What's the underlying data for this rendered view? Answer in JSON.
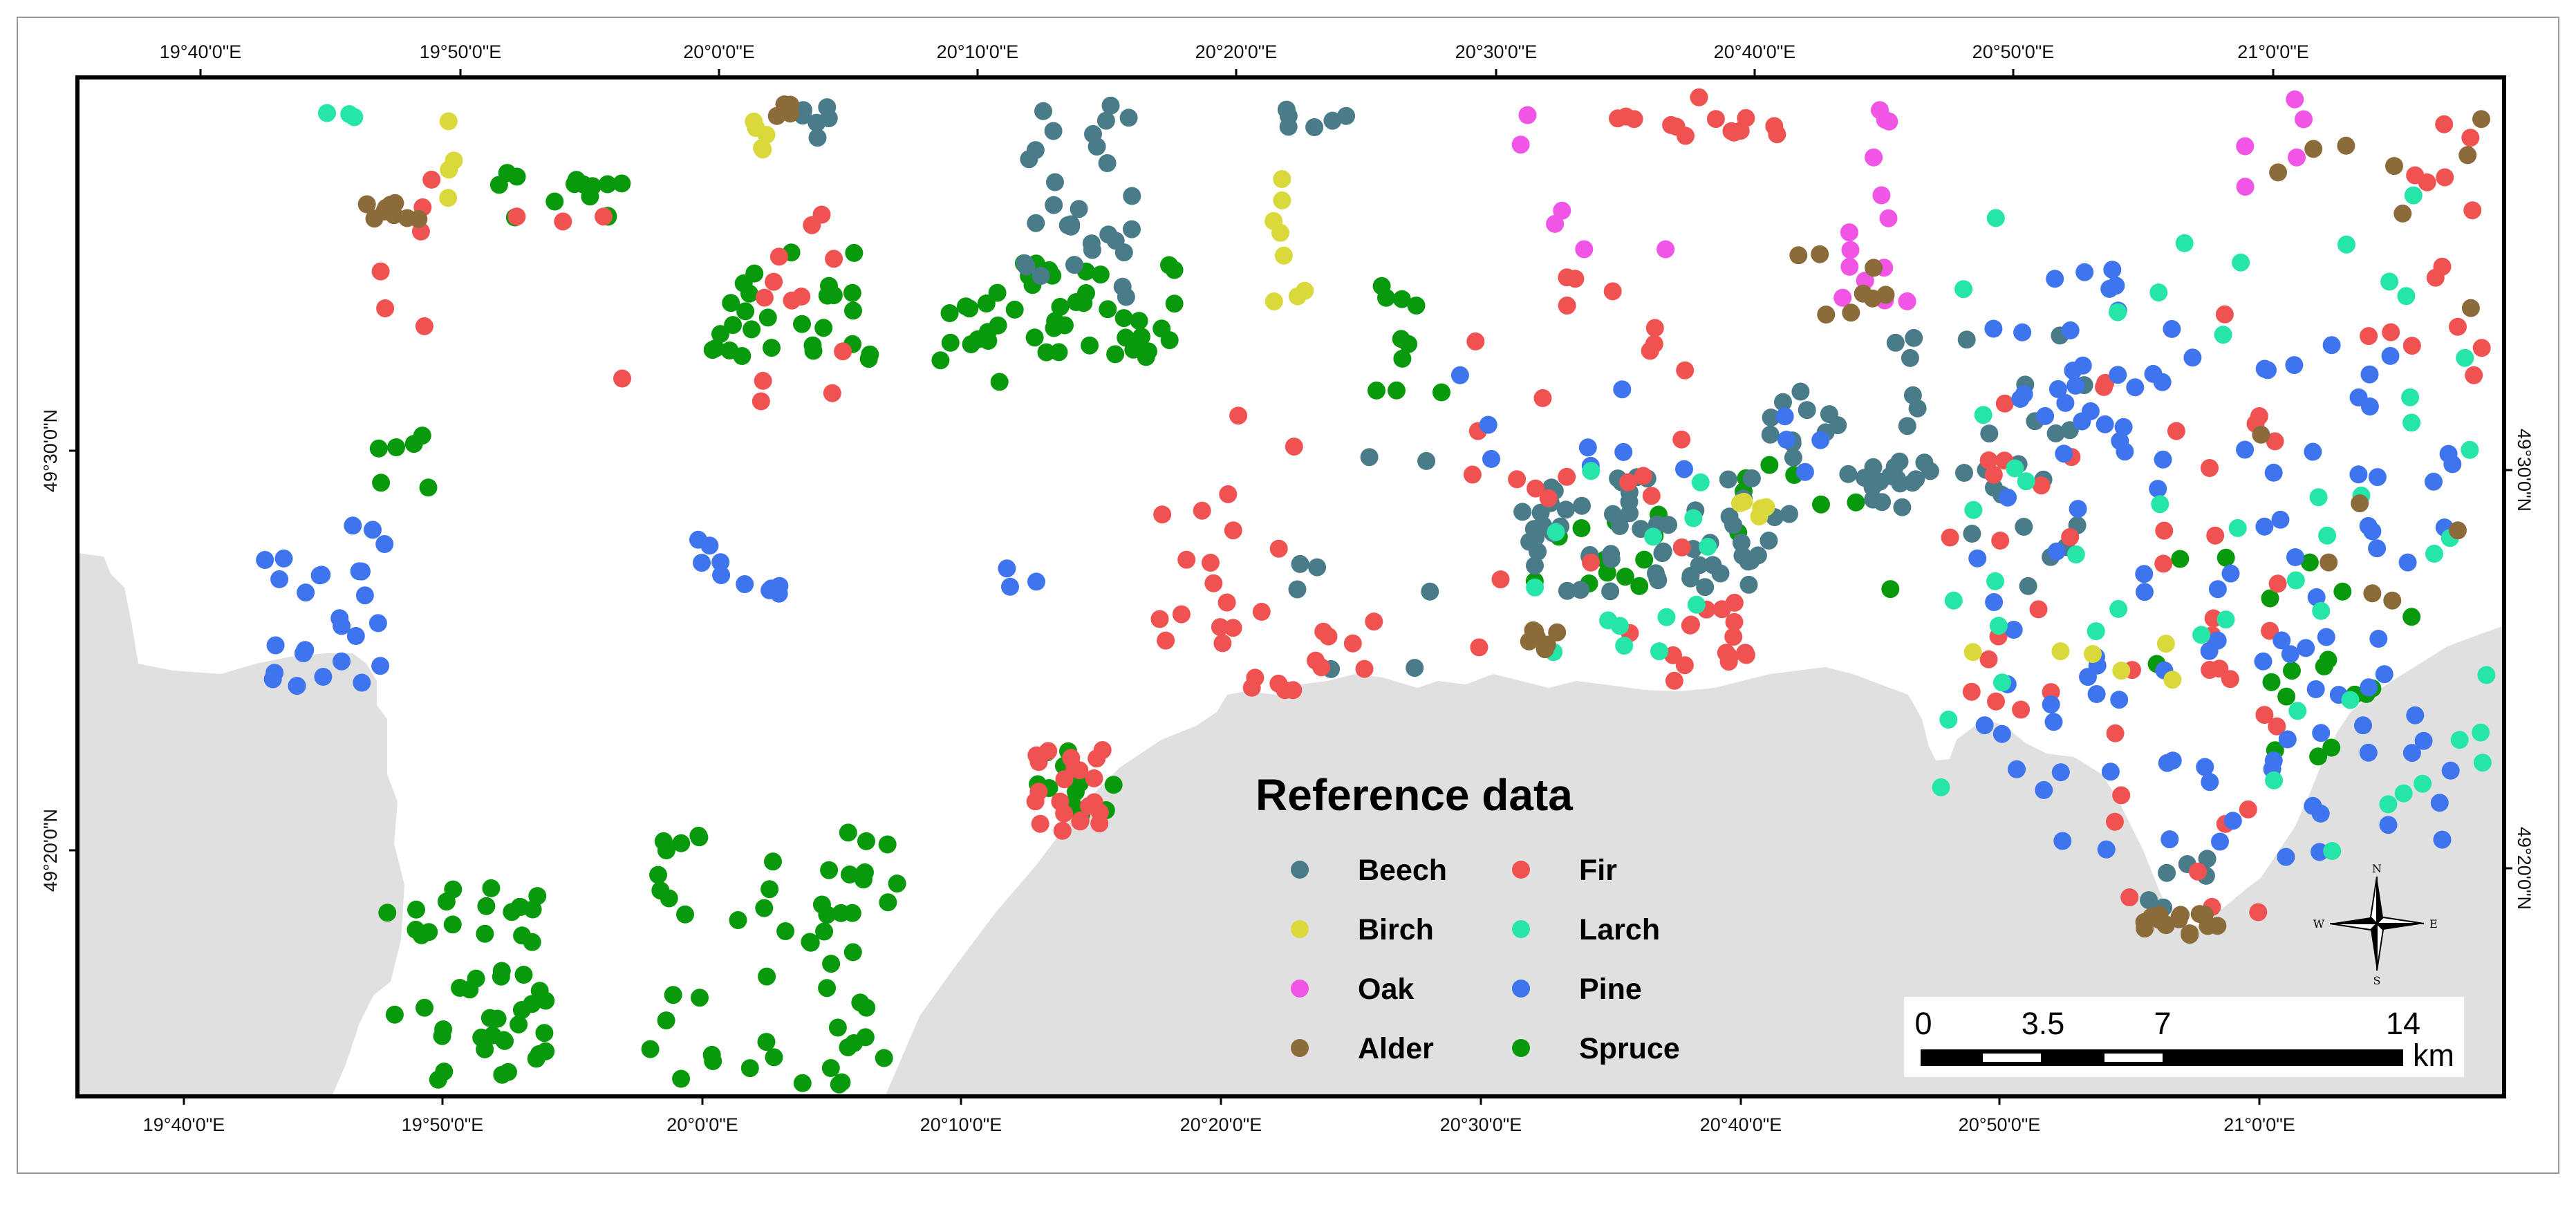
{
  "map": {
    "title": "Reference data",
    "top_ticks": [
      "19°40'0\"E",
      "19°50'0\"E",
      "20°0'0\"E",
      "20°10'0\"E",
      "20°20'0\"E",
      "20°30'0\"E",
      "20°40'0\"E",
      "20°50'0\"E",
      "21°0'0\"E"
    ],
    "bottom_ticks": [
      "19°40'0\"E",
      "19°50'0\"E",
      "20°0'0\"E",
      "20°10'0\"E",
      "20°20'0\"E",
      "20°30'0\"E",
      "20°40'0\"E",
      "20°50'0\"E",
      "21°0'0\"E"
    ],
    "left_ticks": [
      "49°30'0\"N",
      "49°20'0\"N"
    ],
    "right_ticks": [
      "49°30'0\"N",
      "49°20'0\"N"
    ],
    "colors": {
      "terrain": "#e0e0e0",
      "background": "#ffffff"
    }
  },
  "legend": {
    "title": "Reference data",
    "items": [
      {
        "label": "Beech",
        "color": "#4a7b88"
      },
      {
        "label": "Birch",
        "color": "#d9d93c"
      },
      {
        "label": "Oak",
        "color": "#f055e6"
      },
      {
        "label": "Alder",
        "color": "#8c6b3a"
      },
      {
        "label": "Fir",
        "color": "#f05252"
      },
      {
        "label": "Larch",
        "color": "#25e6a8"
      },
      {
        "label": "Pine",
        "color": "#3f74ef"
      },
      {
        "label": "Spruce",
        "color": "#089a0c"
      }
    ]
  },
  "scale_bar": {
    "labels": [
      "0",
      "3.5",
      "7",
      "14"
    ],
    "unit": "km"
  },
  "compass": {
    "n": "N",
    "s": "S",
    "e": "E",
    "w": "W"
  }
}
